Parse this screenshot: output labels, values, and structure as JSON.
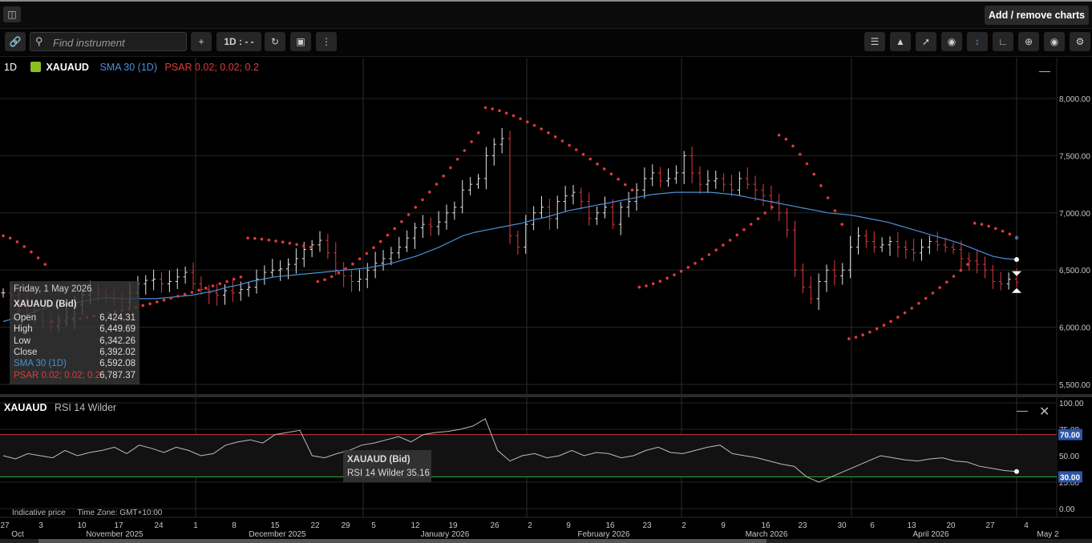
{
  "header": {
    "add_remove_label": "Add / remove charts",
    "home_icon": "chart-icon"
  },
  "toolbar": {
    "search_placeholder": "Find instrument",
    "add_label": "+",
    "interval_label": "1D : - -",
    "tools": [
      "link-icon",
      "plus-icon",
      "refresh-icon",
      "chart-type-icon",
      "more-icon",
      "indicators-icon",
      "drawing-icon",
      "line-tool-icon",
      "visibility-icon",
      "crosshair-icon",
      "curve-icon",
      "zoom-icon",
      "camera-icon",
      "settings-icon"
    ]
  },
  "legend": {
    "interval": "1D",
    "instrument": "XAUAUD",
    "sma": "SMA 30 (1D)",
    "psar": "PSAR 0.02; 0.02; 0.2",
    "sma_color": "#4a90d9",
    "psar_color": "#e03a3a"
  },
  "infobox": {
    "date": "Friday, 1 May 2026",
    "instrument": "XAUAUD (Bid)",
    "rows": [
      {
        "k": "Open",
        "v": "6,424.31"
      },
      {
        "k": "High",
        "v": "6,449.69"
      },
      {
        "k": "Low",
        "v": "6,342.26"
      },
      {
        "k": "Close",
        "v": "6,392.02"
      },
      {
        "k": "SMA 30 (1D)",
        "v": "6,592.08"
      },
      {
        "k": "PSAR 0.02; 0.02; 0.2",
        "v": "6,787.37"
      }
    ]
  },
  "rsi_panel": {
    "instrument": "XAUAUD",
    "indicator": "RSI 14 Wilder",
    "tooltip_title": "XAUAUD (Bid)",
    "tooltip_value": "RSI 14 Wilder 35.16",
    "upper_band": "70.00",
    "lower_band": "30.00"
  },
  "footer": {
    "indicative": "Indicative price",
    "timezone": "Time Zone: GMT+10:00"
  },
  "chart_data": {
    "type": "candlestick",
    "instrument": "XAUAUD",
    "ylim": [
      5500,
      8000
    ],
    "yticks": [
      "8,000.00",
      "7,500.00",
      "7,000.00",
      "6,500.00",
      "6,000.00",
      "5,500.00"
    ],
    "rsi_ylim": [
      0,
      100
    ],
    "rsi_yticks": [
      "100.00",
      "75.00",
      "50.00",
      "25.00",
      "0.00"
    ],
    "x_day_labels": [
      "27",
      "3",
      "10",
      "17",
      "24",
      "1",
      "8",
      "15",
      "22",
      "29",
      "5",
      "12",
      "19",
      "26",
      "2",
      "9",
      "16",
      "23",
      "2",
      "9",
      "16",
      "23",
      "30",
      "6",
      "13",
      "20",
      "27",
      "4"
    ],
    "x_month_labels": [
      "Oct",
      "November 2025",
      "December 2025",
      "January 2026",
      "February 2026",
      "March 2026",
      "April 2026",
      "May 2"
    ],
    "close": [
      6300,
      6280,
      6200,
      6150,
      6100,
      6050,
      6010,
      6050,
      6080,
      6200,
      6280,
      6320,
      6300,
      6280,
      6250,
      6220,
      6300,
      6380,
      6410,
      6420,
      6380,
      6400,
      6440,
      6480,
      6380,
      6330,
      6300,
      6280,
      6320,
      6300,
      6330,
      6350,
      6420,
      6480,
      6500,
      6510,
      6550,
      6600,
      6680,
      6720,
      6760,
      6650,
      6500,
      6450,
      6400,
      6420,
      6500,
      6560,
      6600,
      6650,
      6700,
      6780,
      6870,
      6900,
      6880,
      6920,
      7000,
      7050,
      7200,
      7250,
      7300,
      7500,
      7600,
      7650,
      6800,
      6700,
      6900,
      7000,
      7050,
      6950,
      7100,
      7150,
      7180,
      7100,
      6950,
      7000,
      7050,
      6900,
      7050,
      7100,
      7200,
      7300,
      7350,
      7280,
      7300,
      7350,
      7500,
      7350,
      7250,
      7280,
      7300,
      7250,
      7200,
      7300,
      7250,
      7200,
      7150,
      7100,
      7000,
      6850,
      6500,
      6350,
      6250,
      6400,
      6500,
      6450,
      6500,
      6700,
      6800,
      6750,
      6700,
      6720,
      6750,
      6700,
      6680,
      6650,
      6700,
      6750,
      6720,
      6700,
      6680,
      6600,
      6580,
      6550,
      6500,
      6400,
      6380,
      6420,
      6392
    ],
    "sma30": [
      6050,
      6080,
      6110,
      6150,
      6180,
      6200,
      6210,
      6230,
      6250,
      6260,
      6250,
      6250,
      6250,
      6250,
      6260,
      6270,
      6280,
      6300,
      6320,
      6350,
      6370,
      6400,
      6420,
      6440,
      6450,
      6460,
      6470,
      6480,
      6490,
      6500,
      6510,
      6520,
      6540,
      6560,
      6590,
      6620,
      6660,
      6700,
      6750,
      6800,
      6830,
      6850,
      6870,
      6890,
      6910,
      6940,
      6960,
      6990,
      7020,
      7040,
      7060,
      7080,
      7100,
      7120,
      7140,
      7160,
      7170,
      7180,
      7180,
      7180,
      7180,
      7170,
      7160,
      7140,
      7120,
      7100,
      7080,
      7060,
      7040,
      7020,
      7000,
      6990,
      6980,
      6960,
      6940,
      6920,
      6890,
      6860,
      6830,
      6800,
      6770,
      6740,
      6700,
      6660,
      6620,
      6600,
      6592
    ],
    "rsi": [
      50,
      47,
      52,
      50,
      48,
      55,
      50,
      53,
      55,
      58,
      52,
      60,
      57,
      53,
      58,
      55,
      50,
      52,
      60,
      63,
      65,
      62,
      70,
      72,
      74,
      50,
      48,
      52,
      55,
      60,
      62,
      65,
      68,
      63,
      70,
      72,
      73,
      75,
      78,
      85,
      55,
      45,
      50,
      52,
      48,
      50,
      55,
      50,
      53,
      52,
      48,
      50,
      55,
      58,
      53,
      52,
      55,
      58,
      60,
      52,
      50,
      48,
      45,
      42,
      40,
      30,
      25,
      30,
      35,
      40,
      45,
      50,
      48,
      46,
      45,
      47,
      48,
      45,
      44,
      40,
      38,
      36,
      35
    ],
    "psar_segments": [
      {
        "trend": "down",
        "start": 6800,
        "end": 6550
      },
      {
        "trend": "up",
        "start": 6050,
        "end": 6440
      },
      {
        "trend": "down",
        "start": 6780,
        "end": 6700
      },
      {
        "trend": "up",
        "start": 6400,
        "end": 7700
      },
      {
        "trend": "down",
        "start": 7920,
        "end": 7200
      },
      {
        "trend": "up",
        "start": 6350,
        "end": 7050
      },
      {
        "trend": "down",
        "start": 7680,
        "end": 6900
      },
      {
        "trend": "up",
        "start": 5900,
        "end": 6550
      },
      {
        "trend": "down",
        "start": 6910,
        "end": 6787
      }
    ]
  }
}
